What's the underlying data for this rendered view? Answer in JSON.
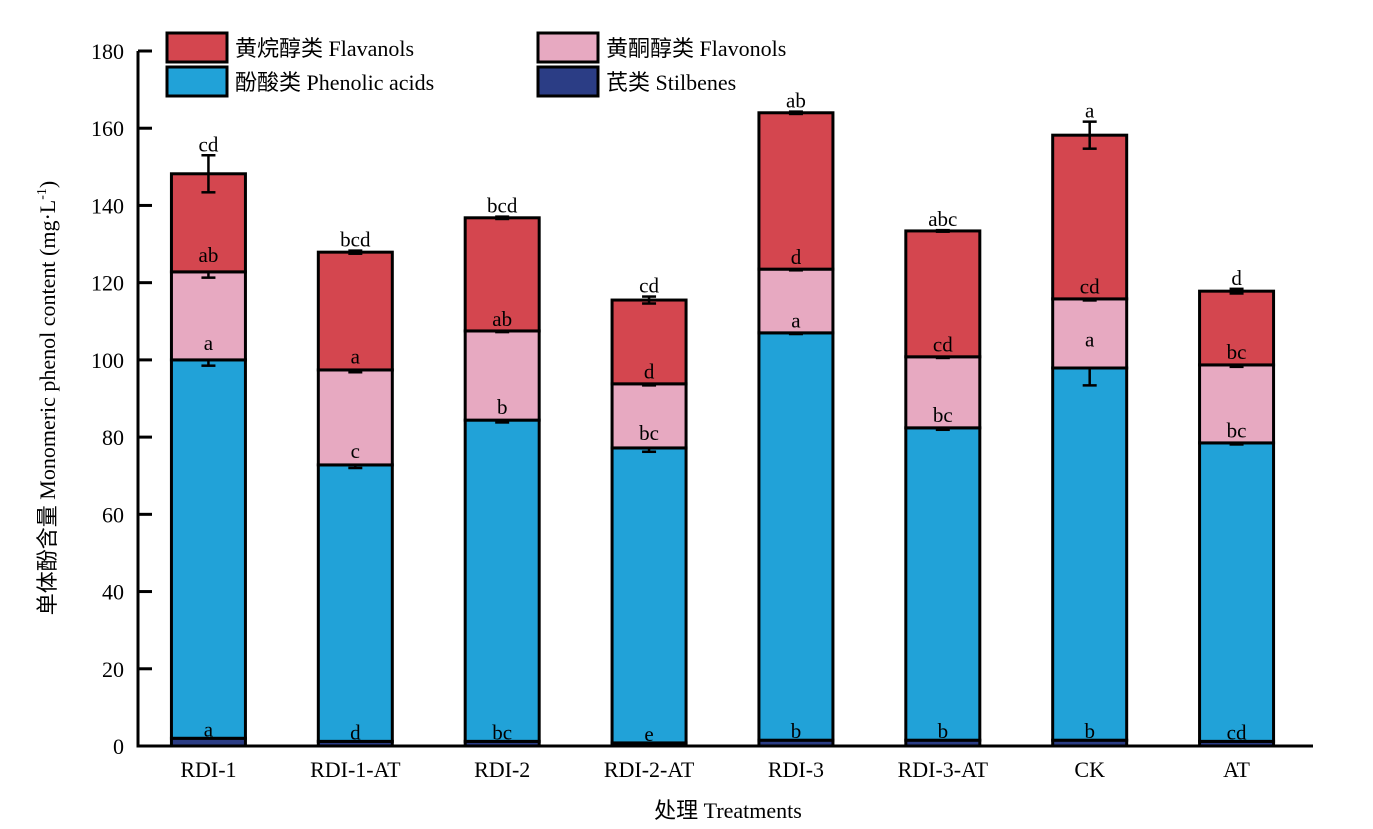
{
  "chart_data": {
    "type": "bar",
    "stacked": true,
    "title": "",
    "xlabel": "处理 Treatments",
    "ylabel": "单体酚含量 Monomeric phenol content (mg·L",
    "ylabel_sup": "-1",
    "ylabel_close": ")",
    "ylim": [
      0,
      180
    ],
    "yticks": [
      0,
      20,
      40,
      60,
      80,
      100,
      120,
      140,
      160,
      180
    ],
    "grid": false,
    "legend_position": "top-left",
    "categories": [
      "RDI-1",
      "RDI-1-AT",
      "RDI-2",
      "RDI-2-AT",
      "RDI-3",
      "RDI-3-AT",
      "CK",
      "AT"
    ],
    "series": [
      {
        "name": "芪类 Stilbenes",
        "color": "#2b3d85",
        "values": [
          2.0,
          1.2,
          1.2,
          0.8,
          1.5,
          1.5,
          1.5,
          1.2
        ],
        "errors": [
          0,
          0,
          0,
          0,
          0,
          0,
          0,
          0
        ],
        "labels": [
          "a",
          "d",
          "bc",
          "e",
          "b",
          "b",
          "b",
          "cd"
        ]
      },
      {
        "name": "酚酸类 Phenolic acids",
        "color": "#21a2d8",
        "values": [
          98.0,
          71.6,
          83.2,
          76.4,
          105.5,
          80.9,
          96.4,
          77.3
        ],
        "errors": [
          1.5,
          0.8,
          0.6,
          1.0,
          0.3,
          0.5,
          4.5,
          0.4
        ],
        "labels": [
          "a",
          "c",
          "b",
          "bc",
          "a",
          "bc",
          "a",
          "bc"
        ]
      },
      {
        "name": "黄酮醇类 Flavonols",
        "color": "#e7a9c1",
        "values": [
          22.8,
          24.6,
          23.1,
          16.6,
          16.5,
          18.4,
          17.9,
          20.2
        ],
        "errors": [
          1.5,
          0.6,
          0.3,
          0.4,
          0.3,
          0.3,
          0.4,
          0.5
        ],
        "labels": [
          "ab",
          "a",
          "ab",
          "d",
          "d",
          "cd",
          "cd",
          "bc"
        ]
      },
      {
        "name": "黄烷醇类 Flavanols",
        "color": "#d4464f",
        "values": [
          25.4,
          30.5,
          29.3,
          21.7,
          40.5,
          32.6,
          42.4,
          19.1
        ],
        "errors": [
          4.8,
          0.4,
          0.3,
          0.9,
          0.3,
          0.2,
          3.5,
          0.6
        ],
        "labels": [
          "cd",
          "bcd",
          "bcd",
          "cd",
          "ab",
          "abc",
          "a",
          "d"
        ]
      }
    ],
    "legend_order": [
      3,
      2,
      1,
      0
    ]
  }
}
